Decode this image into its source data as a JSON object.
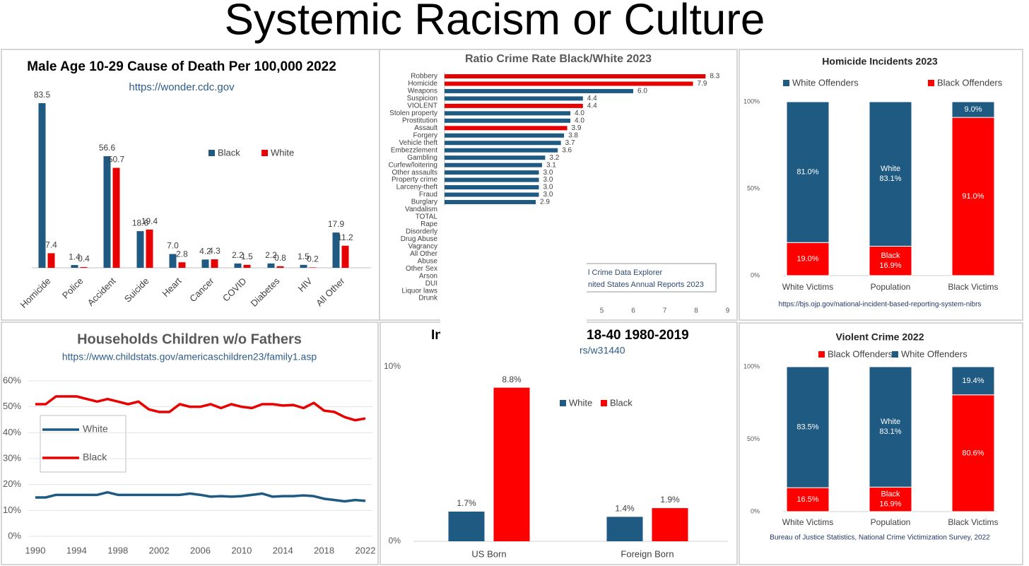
{
  "title": "Systemic Racism or Culture",
  "chart_data": [
    {
      "type": "bar",
      "title": "Male Age 10-29 Cause of Death Per 100,000 2022",
      "subtitle": "https://wonder.cdc.gov",
      "categories": [
        "Homicide",
        "Police",
        "Accident",
        "Suicide",
        "Heart",
        "Cancer",
        "COVID",
        "Diabetes",
        "HIV",
        "All Other"
      ],
      "series": [
        {
          "name": "Black",
          "color": "#1f5a82",
          "values": [
            83.5,
            1.4,
            56.6,
            18.6,
            7.0,
            4.2,
            2.2,
            2.2,
            1.5,
            17.9
          ],
          "value_labels": [
            "83.5",
            "1.4",
            "56.6",
            "18.6",
            "7.0",
            "4.2",
            "2.2",
            "2.2",
            "1.5",
            "17.9"
          ]
        },
        {
          "name": "White",
          "color": "#e80000",
          "values": [
            7.4,
            0.4,
            50.7,
            19.4,
            2.8,
            4.3,
            1.5,
            0.8,
            0.2,
            11.2
          ],
          "value_labels": [
            "7.4",
            "0.4",
            "50.7",
            "19.4",
            "2.8",
            "4.3",
            "1.5",
            "0.8",
            "0.2",
            "11.2"
          ]
        }
      ]
    },
    {
      "type": "barh",
      "title": "Ratio Crime Rate Black/White 2023",
      "categories": [
        "Robbery",
        "Homicide",
        "Weapons",
        "Suspicion",
        "VIOLENT",
        "Stolen property",
        "Prostitution",
        "Assault",
        "Forgery",
        "Vehicle theft",
        "Embezzlement",
        "Gambling",
        "Curfew/loitering",
        "Other assaults",
        "Property crime",
        "Larceny-theft",
        "Fraud",
        "Burglary",
        "Vandalism",
        "TOTAL",
        "Rape",
        "Disorderly",
        "Drug Abuse",
        "Vagrancy",
        "All Other",
        "Abuse",
        "Other Sex",
        "Arson",
        "DUI",
        "Liquor laws",
        "Drunk"
      ],
      "values": [
        8.3,
        7.9,
        6.0,
        4.4,
        4.4,
        4.0,
        4.0,
        3.9,
        3.8,
        3.7,
        3.6,
        3.2,
        3.1,
        3.0,
        3.0,
        3.0,
        3.0,
        2.9,
        null,
        null,
        null,
        null,
        null,
        null,
        null,
        null,
        null,
        null,
        null,
        null,
        null
      ],
      "value_labels": [
        "8.3",
        "7.9",
        "6.0",
        "4.4",
        "4.4",
        "4.0",
        "4.0",
        "3.9",
        "3.8",
        "3.7",
        "3.6",
        "3.2",
        "3.1",
        "3.0",
        "3.0",
        "3.0",
        "3.0",
        "2.9",
        null,
        null,
        null,
        null,
        null,
        null,
        null,
        null,
        null,
        null,
        null,
        null,
        null
      ],
      "colors": [
        "#e80000",
        "#e80000",
        "#1f5a82",
        "#1f5a82",
        "#e80000",
        "#1f5a82",
        "#1f5a82",
        "#e80000",
        "#1f5a82",
        "#1f5a82",
        "#1f5a82",
        "#1f5a82",
        "#1f5a82",
        "#1f5a82",
        "#1f5a82",
        "#1f5a82",
        "#1f5a82",
        "#1f5a82",
        null,
        null,
        null,
        null,
        null,
        null,
        null,
        null,
        null,
        null,
        null,
        null,
        null
      ],
      "xlim": [
        0,
        9
      ],
      "xticks": [
        5,
        6,
        7,
        8,
        9
      ],
      "annotations": [
        "l Crime Data Explorer",
        "nited States Annual Reports 2023"
      ]
    },
    {
      "type": "stacked_bar",
      "title": "Homicide Incidents 2023",
      "categories": [
        "White Victims",
        "Population",
        "Black Victims"
      ],
      "series": [
        {
          "name": "Black Offenders",
          "color": "#ff0000",
          "values": [
            19.0,
            16.9,
            91.0
          ],
          "value_labels": [
            "19.0%",
            "16.9%",
            "91.0%"
          ],
          "segment_titles": [
            null,
            "Black",
            null
          ]
        },
        {
          "name": "White Offenders",
          "color": "#1f5a82",
          "values": [
            81.0,
            83.1,
            9.0
          ],
          "value_labels": [
            "81.0%",
            "83.1%",
            "9.0%"
          ],
          "segment_titles": [
            null,
            "White",
            null
          ]
        }
      ],
      "ylim": [
        0,
        100
      ],
      "yticks": [
        {
          "value": 0,
          "label": "0%"
        },
        {
          "value": 50,
          "label": "50%"
        },
        {
          "value": 100,
          "label": "100%"
        }
      ],
      "source": "https://bjs.ojp.gov/national-incident-based-reporting-system-nibrs"
    },
    {
      "type": "line",
      "title": "Households Children w/o Fathers",
      "subtitle": "https://www.childstats.gov/americaschildren23/family1.asp",
      "x": [
        1990,
        1991,
        1992,
        1993,
        1994,
        1995,
        1996,
        1997,
        1998,
        1999,
        2000,
        2001,
        2002,
        2003,
        2004,
        2005,
        2006,
        2007,
        2008,
        2009,
        2010,
        2011,
        2012,
        2013,
        2014,
        2015,
        2016,
        2017,
        2018,
        2019,
        2020,
        2021,
        2022
      ],
      "series": [
        {
          "name": "White",
          "color": "#1f5a82",
          "values": [
            15,
            15,
            16,
            16,
            16,
            16,
            16,
            17,
            16,
            16,
            16,
            16,
            16,
            16,
            16,
            16.5,
            16,
            15.3,
            15.5,
            15.3,
            15.5,
            16,
            16.5,
            15.3,
            15.5,
            15.5,
            15.8,
            15.5,
            14.5,
            14,
            13.5,
            14,
            13.7
          ]
        },
        {
          "name": "Black",
          "color": "#e80000",
          "values": [
            51,
            51,
            54,
            54,
            54,
            53,
            52,
            53,
            52,
            51,
            52,
            49,
            48,
            48,
            51,
            50,
            50,
            51,
            49.5,
            51,
            50,
            49.5,
            51,
            51,
            50.5,
            50.7,
            49.5,
            51.5,
            48.5,
            48,
            46,
            44.8,
            45.5
          ]
        }
      ],
      "xlim": [
        1990,
        2022
      ],
      "xticks": [
        1990,
        1994,
        1998,
        2002,
        2006,
        2010,
        2014,
        2018,
        2022
      ],
      "ylim": [
        0,
        60
      ],
      "yticks": [
        {
          "value": 0,
          "label": "0%"
        },
        {
          "value": 10,
          "label": "10%"
        },
        {
          "value": 20,
          "label": "20%"
        },
        {
          "value": 30,
          "label": "30%"
        },
        {
          "value": 40,
          "label": "40%"
        },
        {
          "value": 50,
          "label": "50%"
        },
        {
          "value": 60,
          "label": "60%"
        }
      ],
      "grid": true
    },
    {
      "type": "bar",
      "title_parts": [
        "In",
        "18-40 1980-2019"
      ],
      "subtitle": "rs/w31440",
      "categories": [
        "US Born",
        "Foreign Born"
      ],
      "series": [
        {
          "name": "White",
          "color": "#1f5a82",
          "values": [
            1.7,
            1.4
          ],
          "value_labels": [
            "1.7%",
            "1.4%"
          ]
        },
        {
          "name": "Black",
          "color": "#ff0000",
          "values": [
            8.8,
            1.9
          ],
          "value_labels": [
            "8.8%",
            "1.9%"
          ]
        }
      ],
      "ylim": [
        0,
        10
      ],
      "yticks": [
        {
          "value": 0,
          "label": "0%"
        },
        {
          "value": 10,
          "label": "10%"
        }
      ]
    },
    {
      "type": "stacked_bar",
      "title": "Violent Crime 2022",
      "categories": [
        "White Victims",
        "Population",
        "Black Victims"
      ],
      "series": [
        {
          "name": "Black Offenders",
          "color": "#ff0000",
          "values": [
            16.5,
            16.9,
            80.6
          ],
          "value_labels": [
            "16.5%",
            "16.9%",
            "80.6%"
          ],
          "segment_titles": [
            null,
            "Black",
            null
          ]
        },
        {
          "name": "White Offenders",
          "color": "#1f5a82",
          "values": [
            83.5,
            83.1,
            19.4
          ],
          "value_labels": [
            "83.5%",
            "83.1%",
            "19.4%"
          ],
          "segment_titles": [
            null,
            "White",
            null
          ]
        }
      ],
      "ylim": [
        0,
        100
      ],
      "yticks": [
        {
          "value": 0,
          "label": "0%"
        },
        {
          "value": 50,
          "label": "50%"
        },
        {
          "value": 100,
          "label": "100%"
        }
      ],
      "source": "Bureau of Justice Statistics, National Crime Victimization Survey, 2022"
    }
  ]
}
